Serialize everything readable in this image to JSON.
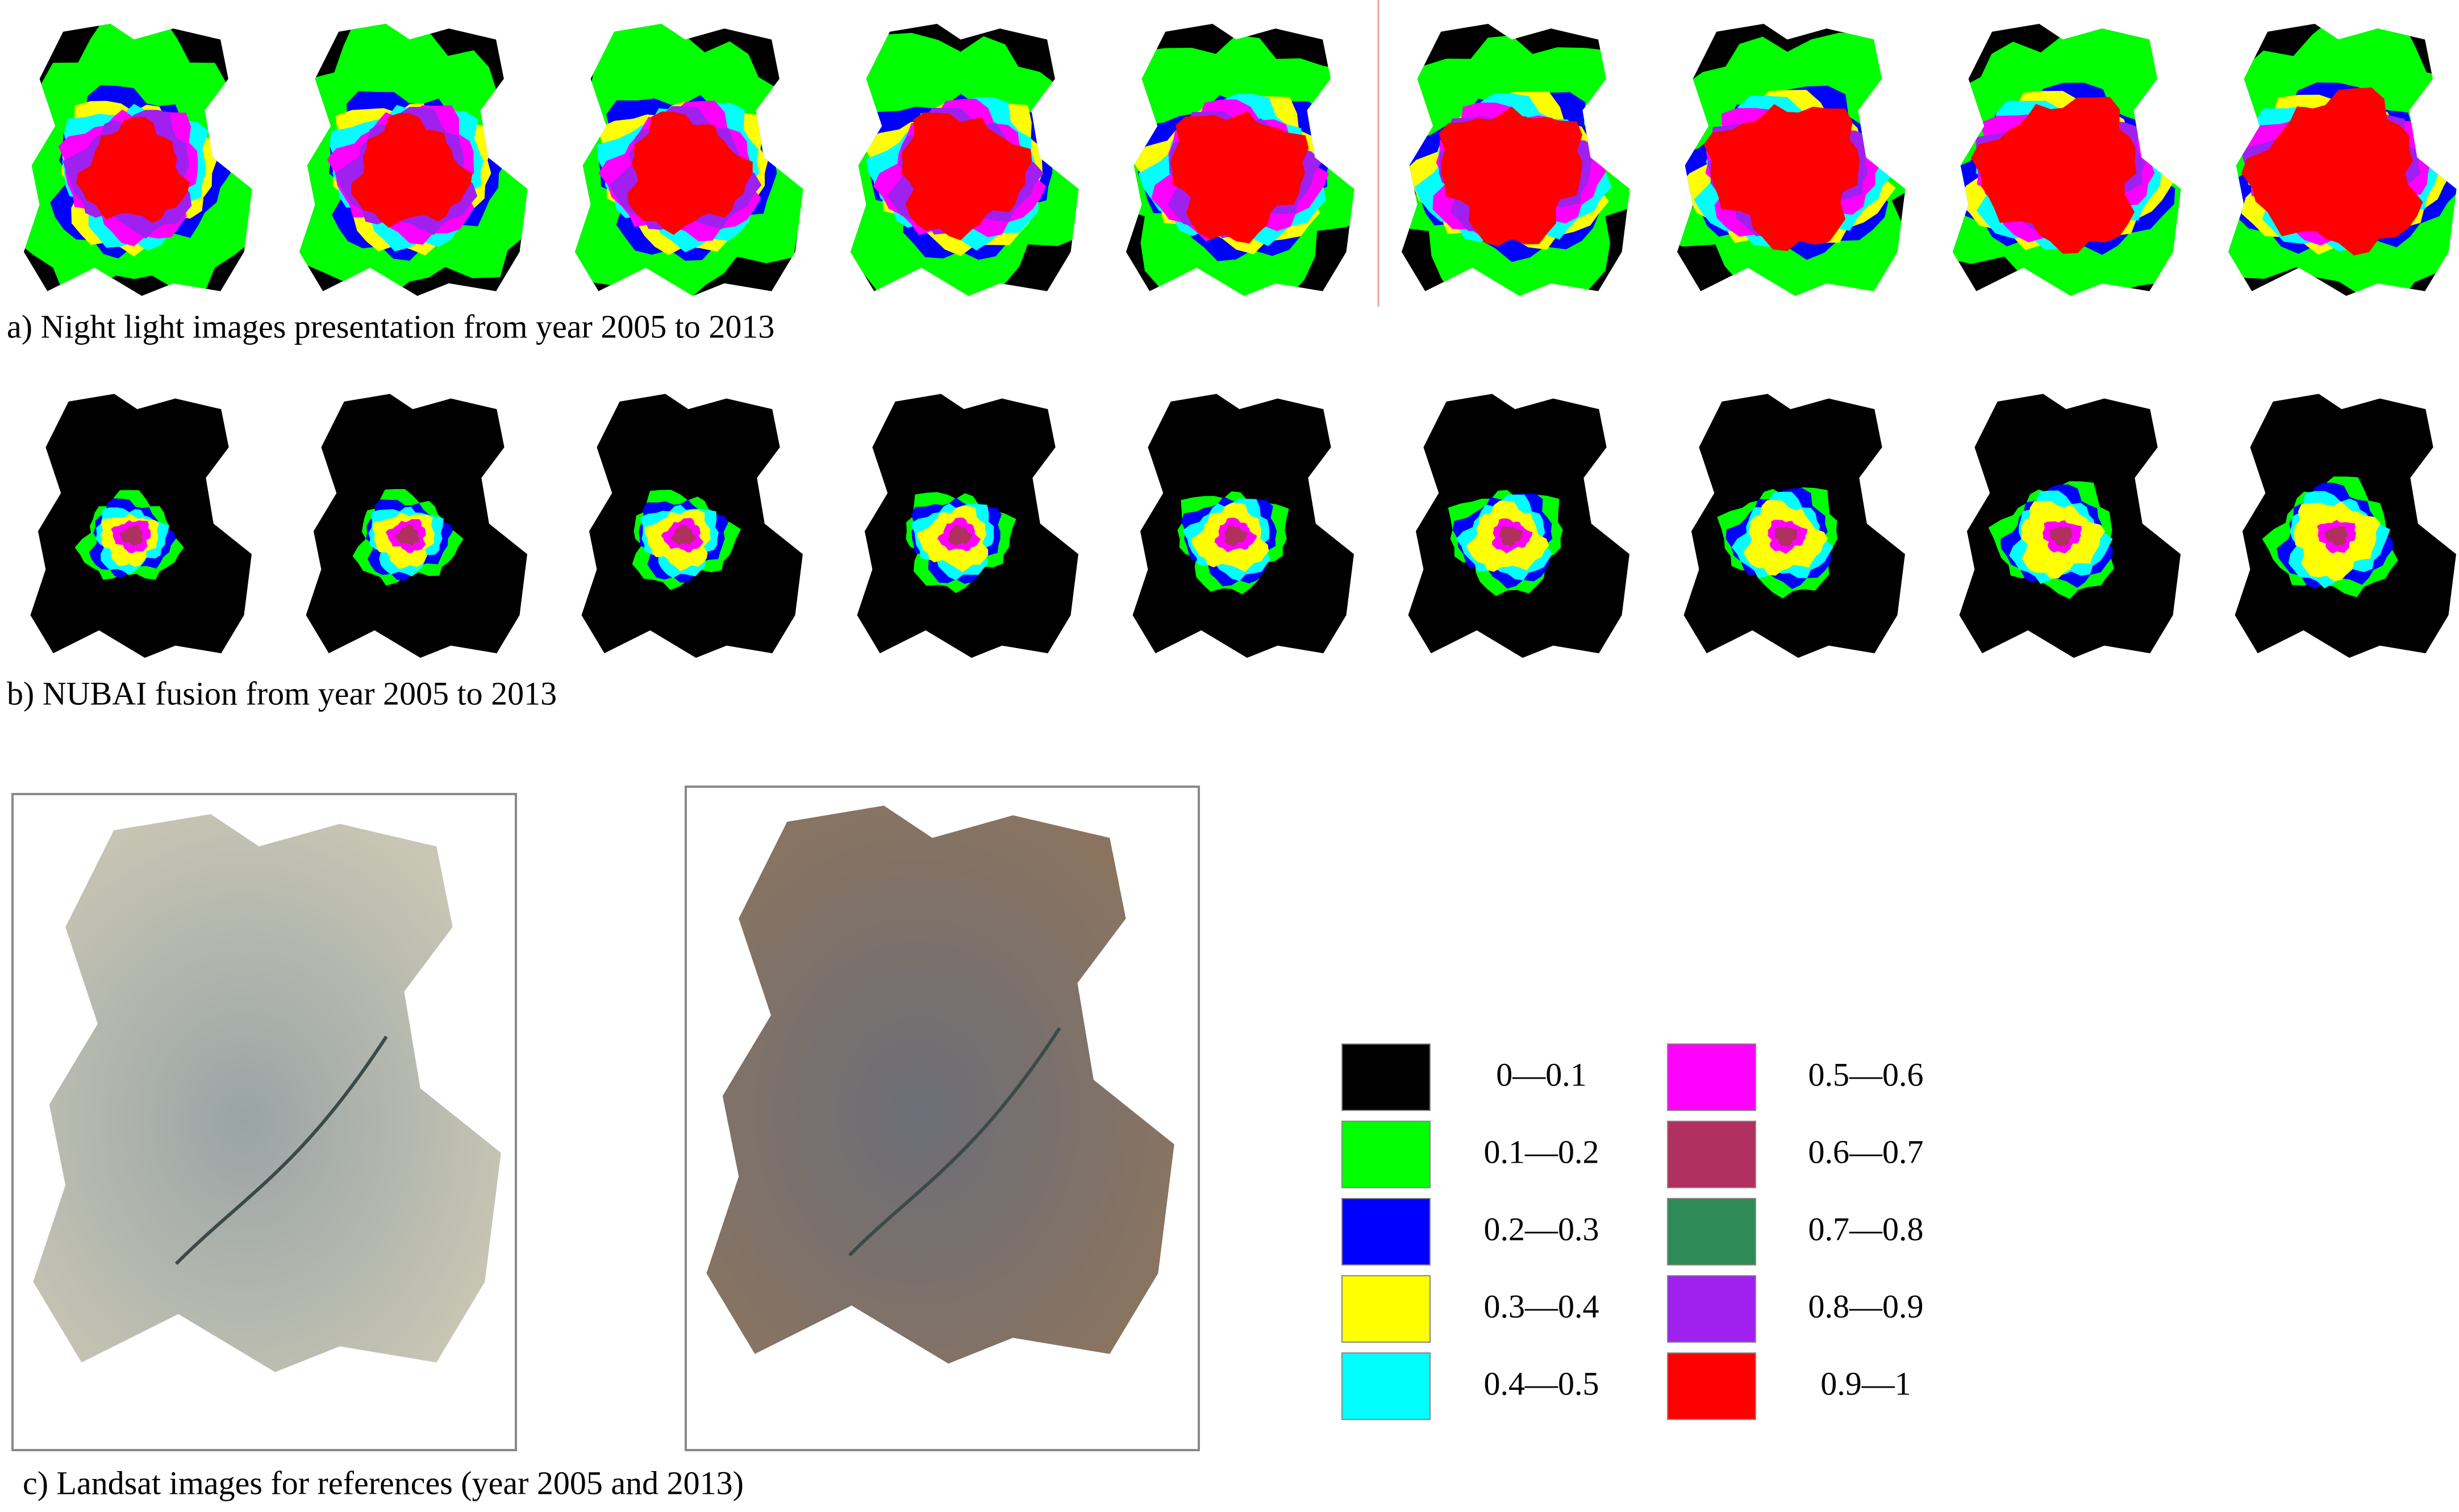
{
  "captions": {
    "a": "a) Night light images presentation from year 2005 to 2013",
    "b": "b) NUBAI fusion from year 2005 to 2013",
    "c": "c) Landsat images for references (year 2005 and 2013)"
  },
  "legend": [
    {
      "label": "0—0.1",
      "color": "#000000"
    },
    {
      "label": "0.1—0.2",
      "color": "#00ff00"
    },
    {
      "label": "0.2—0.3",
      "color": "#0000ff"
    },
    {
      "label": "0.3—0.4",
      "color": "#ffff00"
    },
    {
      "label": "0.4—0.5",
      "color": "#00ffff"
    },
    {
      "label": "0.5—0.6",
      "color": "#ff00ff"
    },
    {
      "label": "0.6—0.7",
      "color": "#b03060"
    },
    {
      "label": "0.7—0.8",
      "color": "#2e8b57"
    },
    {
      "label": "0.8—0.9",
      "color": "#a020f0"
    },
    {
      "label": "0.9—1",
      "color": "#ff0000"
    }
  ]
}
